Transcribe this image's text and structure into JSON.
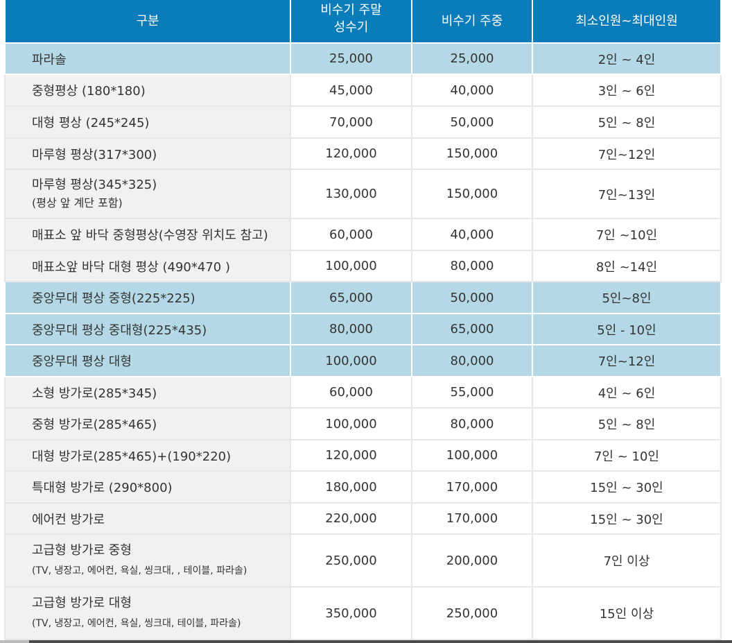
{
  "header": {
    "col1": "구분",
    "col2_line1": "비수기 주말",
    "col2_line2": "성수기",
    "col3": "비수기 주중",
    "col4": "최소인원~최대인원"
  },
  "rows": [
    {
      "name": "파라솔",
      "sub": "",
      "weekend": "25,000",
      "weekday": "25,000",
      "people": "2인 ~ 4인",
      "highlight": true
    },
    {
      "name": "중형평상 (180*180)",
      "sub": "",
      "weekend": "45,000",
      "weekday": "40,000",
      "people": "3인 ~ 6인",
      "highlight": false
    },
    {
      "name": "대형 평상 (245*245)",
      "sub": "",
      "weekend": "70,000",
      "weekday": "50,000",
      "people": "5인 ~ 8인",
      "highlight": false
    },
    {
      "name": "마루형 평상(317*300)",
      "sub": "",
      "weekend": "120,000",
      "weekday": "150,000",
      "people": "7인~12인",
      "highlight": false
    },
    {
      "name": "마루형 평상(345*325)",
      "sub": "(평상 앞 계단 포함)",
      "weekend": "130,000",
      "weekday": "150,000",
      "people": "7인~13인",
      "highlight": false
    },
    {
      "name": "매표소 앞 바닥 중형평상(수영장 위치도 참고)",
      "sub": "",
      "weekend": "60,000",
      "weekday": "40,000",
      "people": "7인 ~10인",
      "highlight": false
    },
    {
      "name": "매표소앞 바닥 대형 평상 (490*470 )",
      "sub": "",
      "weekend": "100,000",
      "weekday": "80,000",
      "people": "8인 ~14인",
      "highlight": false
    },
    {
      "name": "중앙무대 평상 중형(225*225)",
      "sub": "",
      "weekend": "65,000",
      "weekday": "50,000",
      "people": "5인~8인",
      "highlight": true
    },
    {
      "name": "중앙무대 평상 중대형(225*435)",
      "sub": "",
      "weekend": "80,000",
      "weekday": "65,000",
      "people": "5인 - 10인",
      "highlight": true
    },
    {
      "name": "중앙무대 평상 대형",
      "sub": "",
      "weekend": "100,000",
      "weekday": "80,000",
      "people": "7인~12인",
      "highlight": true
    },
    {
      "name": "소형 방가로(285*345)",
      "sub": "",
      "weekend": "60,000",
      "weekday": "55,000",
      "people": "4인 ~ 6인",
      "highlight": false
    },
    {
      "name": "중형 방가로(285*465)",
      "sub": "",
      "weekend": "100,000",
      "weekday": "80,000",
      "people": "5인 ~ 8인",
      "highlight": false
    },
    {
      "name": "대형 방가로(285*465)+(190*220)",
      "sub": "",
      "weekend": "120,000",
      "weekday": "100,000",
      "people": "7인 ~ 10인",
      "highlight": false
    },
    {
      "name": "특대형 방가로 (290*800)",
      "sub": "",
      "weekend": "180,000",
      "weekday": "170,000",
      "people": "15인 ~ 30인",
      "highlight": false
    },
    {
      "name": "에어컨 방가로",
      "sub": "",
      "weekend": "220,000",
      "weekday": "170,000",
      "people": "15인 ~ 30인",
      "highlight": false
    },
    {
      "name": "고급형 방가로 중형",
      "sub": "(TV, 냉장고, 에어컨, 욕실, 씽크대, , 테이블, 파라솔)",
      "weekend": "250,000",
      "weekday": "200,000",
      "people": "7인 이상",
      "highlight": false
    },
    {
      "name": "고급형 방가로 대형",
      "sub": "(TV, 냉장고, 에어컨, 욕실, 씽크대, 테이블, 파라솔)",
      "weekend": "350,000",
      "weekday": "250,000",
      "people": "15인 이상",
      "highlight": false
    }
  ]
}
